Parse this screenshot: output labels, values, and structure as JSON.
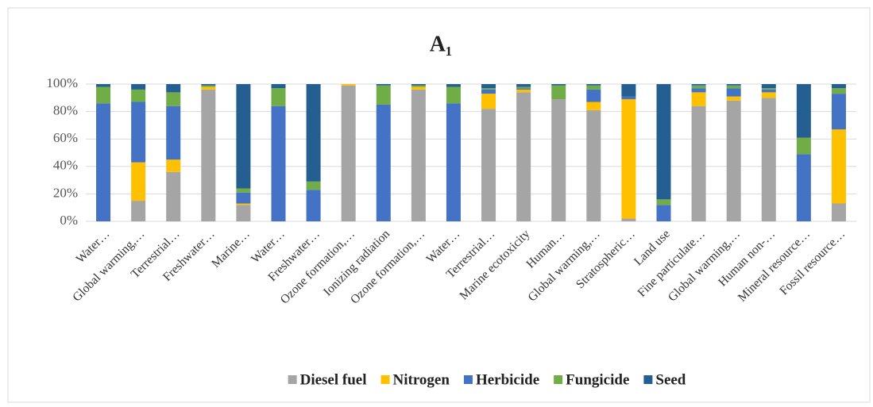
{
  "chart_data": {
    "type": "stacked_bar",
    "title": "A₁",
    "categories": [
      "Water…",
      "Global warming,…",
      "Terrestrial…",
      "Freshwater…",
      "Marine…",
      "Water…",
      "Freshwater…",
      "Ozone formation,…",
      "Ionizing radiation",
      "Ozone formation,…",
      "Water…",
      "Terrestrial…",
      "Marine ecotoxicity",
      "Human…",
      "Global warming,…",
      "Stratospheric…",
      "Land use",
      "Fine particulate…",
      "Global warming,…",
      "Human non-…",
      "Mineral resource…",
      "Fossil resource…"
    ],
    "series": [
      {
        "name": "Diesel fuel",
        "color": "#a5a5a5",
        "values": [
          0,
          15,
          36,
          96,
          12,
          0,
          0,
          99,
          0,
          96,
          0,
          82,
          94,
          89,
          81,
          2,
          0,
          84,
          88,
          90,
          0,
          13
        ]
      },
      {
        "name": "Nitrogen",
        "color": "#ffc000",
        "values": [
          0,
          28,
          9,
          2,
          1,
          0,
          0,
          1,
          0,
          2,
          0,
          11,
          2,
          0,
          6,
          87,
          0,
          10,
          3,
          4,
          0,
          54
        ]
      },
      {
        "name": "Herbicide",
        "color": "#4472c4",
        "values": [
          86,
          44,
          39,
          0,
          8,
          84,
          23,
          0,
          85,
          0,
          86,
          3,
          1,
          0,
          9,
          2,
          12,
          3,
          6,
          2,
          49,
          26
        ]
      },
      {
        "name": "Fungicide",
        "color": "#70ad47",
        "values": [
          12,
          9,
          10,
          1,
          3,
          13,
          6,
          0,
          14,
          1,
          12,
          1,
          1,
          10,
          3,
          0,
          4,
          2,
          2,
          1,
          12,
          4
        ]
      },
      {
        "name": "Seed",
        "color": "#255e91",
        "values": [
          2,
          4,
          6,
          1,
          76,
          3,
          71,
          0,
          1,
          1,
          2,
          3,
          2,
          1,
          1,
          9,
          84,
          1,
          1,
          3,
          39,
          3
        ]
      }
    ],
    "ylim": [
      0,
      100
    ],
    "yticks": [
      {
        "value": 0,
        "label": "0%"
      },
      {
        "value": 20,
        "label": "20%"
      },
      {
        "value": 40,
        "label": "40%"
      },
      {
        "value": 60,
        "label": "60%"
      },
      {
        "value": 80,
        "label": "80%"
      },
      {
        "value": 100,
        "label": "100%"
      }
    ],
    "grid": true,
    "legend": "bottom"
  }
}
